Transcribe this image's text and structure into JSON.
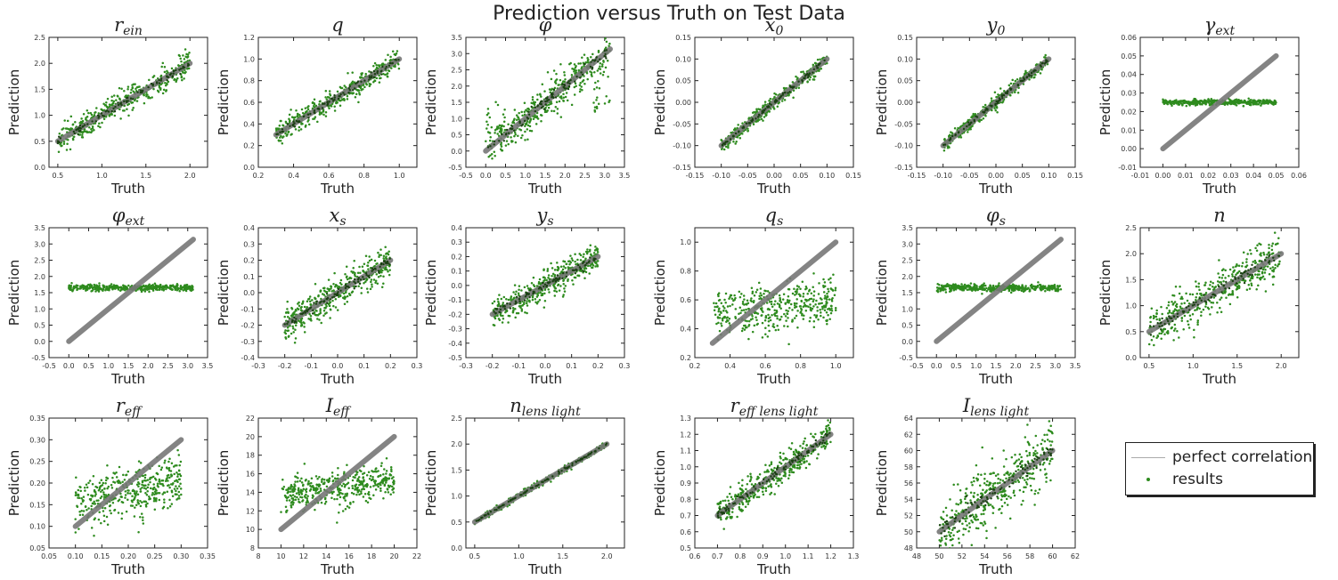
{
  "figure": {
    "title": "Prediction versus Truth on Test Data",
    "xlabel": "Truth",
    "ylabel": "Prediction"
  },
  "colors": {
    "results": "#2e8b1e",
    "results_dark": "#1a4012",
    "perfect": "#777777"
  },
  "legend": {
    "perfect_label": "perfect correlation",
    "results_label": "results"
  },
  "chart_data": [
    {
      "type": "scatter",
      "title": "r_ein",
      "title_html": "r<sub>ein</sub>",
      "xlim": [
        0.4,
        2.2
      ],
      "ylim": [
        0,
        2.5
      ],
      "xticks": [
        0.5,
        1.0,
        1.5,
        2.0
      ],
      "yticks": [
        0.0,
        0.5,
        1.0,
        1.5,
        2.0,
        2.5
      ],
      "xdec": 1,
      "ydec": 1,
      "truth_range": [
        0.5,
        2.0
      ],
      "behavior": "correlated",
      "noise": 0.12
    },
    {
      "type": "scatter",
      "title": "q",
      "title_html": "q",
      "xlim": [
        0.2,
        1.1
      ],
      "ylim": [
        0.0,
        1.2
      ],
      "xticks": [
        0.2,
        0.4,
        0.6,
        0.8,
        1.0
      ],
      "yticks": [
        0.0,
        0.2,
        0.4,
        0.6,
        0.8,
        1.0,
        1.2
      ],
      "xdec": 1,
      "ydec": 1,
      "truth_range": [
        0.3,
        1.0
      ],
      "behavior": "correlated",
      "noise": 0.05
    },
    {
      "type": "scatter",
      "title": "phi",
      "title_html": "φ",
      "xlim": [
        -0.5,
        3.5
      ],
      "ylim": [
        -0.5,
        3.5
      ],
      "xticks": [
        -0.5,
        0.0,
        0.5,
        1.0,
        1.5,
        2.0,
        2.5,
        3.0,
        3.5
      ],
      "yticks": [
        -0.5,
        0.0,
        0.5,
        1.0,
        1.5,
        2.0,
        2.5,
        3.0,
        3.5
      ],
      "xdec": 1,
      "ydec": 1,
      "truth_range": [
        0.0,
        3.14
      ],
      "behavior": "correlated",
      "noise": 0.3
    },
    {
      "type": "scatter",
      "title": "x_0",
      "title_html": "x<sub>0</sub>",
      "xlim": [
        -0.15,
        0.15
      ],
      "ylim": [
        -0.15,
        0.15
      ],
      "xticks": [
        -0.15,
        -0.1,
        -0.05,
        0.0,
        0.05,
        0.1,
        0.15
      ],
      "yticks": [
        -0.15,
        -0.1,
        -0.05,
        0.0,
        0.05,
        0.1,
        0.15
      ],
      "xdec": 2,
      "ydec": 2,
      "truth_range": [
        -0.1,
        0.1
      ],
      "behavior": "correlated",
      "noise": 0.008
    },
    {
      "type": "scatter",
      "title": "y_0",
      "title_html": "y<sub>0</sub>",
      "xlim": [
        -0.15,
        0.15
      ],
      "ylim": [
        -0.15,
        0.15
      ],
      "xticks": [
        -0.15,
        -0.1,
        -0.05,
        0.0,
        0.05,
        0.1,
        0.15
      ],
      "yticks": [
        -0.15,
        -0.1,
        -0.05,
        0.0,
        0.05,
        0.1,
        0.15
      ],
      "xdec": 2,
      "ydec": 2,
      "truth_range": [
        -0.1,
        0.1
      ],
      "behavior": "correlated",
      "noise": 0.008
    },
    {
      "type": "scatter",
      "title": "gamma_ext",
      "title_html": "γ<sub>ext</sub>",
      "xlim": [
        -0.01,
        0.06
      ],
      "ylim": [
        -0.01,
        0.06
      ],
      "xticks": [
        -0.01,
        0.0,
        0.01,
        0.02,
        0.03,
        0.04,
        0.05,
        0.06
      ],
      "yticks": [
        -0.01,
        0.0,
        0.01,
        0.02,
        0.03,
        0.04,
        0.05,
        0.06
      ],
      "xdec": 2,
      "ydec": 2,
      "truth_range": [
        0.0,
        0.05
      ],
      "behavior": "flat",
      "flat_value": 0.025,
      "noise": 0.0007
    },
    {
      "type": "scatter",
      "title": "phi_ext",
      "title_html": "φ<sub>ext</sub>",
      "xlim": [
        -0.5,
        3.5
      ],
      "ylim": [
        -0.5,
        3.5
      ],
      "xticks": [
        -0.5,
        0.0,
        0.5,
        1.0,
        1.5,
        2.0,
        2.5,
        3.0,
        3.5
      ],
      "yticks": [
        -0.5,
        0.0,
        0.5,
        1.0,
        1.5,
        2.0,
        2.5,
        3.0,
        3.5
      ],
      "xdec": 1,
      "ydec": 1,
      "truth_range": [
        0.0,
        3.14
      ],
      "behavior": "flat",
      "flat_value": 1.65,
      "noise": 0.05
    },
    {
      "type": "scatter",
      "title": "x_s",
      "title_html": "x<sub>s</sub>",
      "xlim": [
        -0.3,
        0.3
      ],
      "ylim": [
        -0.4,
        0.4
      ],
      "xticks": [
        -0.3,
        -0.2,
        -0.1,
        0.0,
        0.1,
        0.2,
        0.3
      ],
      "yticks": [
        -0.4,
        -0.3,
        -0.2,
        -0.1,
        0.0,
        0.1,
        0.2,
        0.3,
        0.4
      ],
      "xdec": 1,
      "ydec": 1,
      "truth_range": [
        -0.2,
        0.2
      ],
      "behavior": "correlated",
      "noise": 0.05
    },
    {
      "type": "scatter",
      "title": "y_s",
      "title_html": "y<sub>s</sub>",
      "xlim": [
        -0.3,
        0.3
      ],
      "ylim": [
        -0.5,
        0.4
      ],
      "xticks": [
        -0.3,
        -0.2,
        -0.1,
        0.0,
        0.1,
        0.2,
        0.3
      ],
      "yticks": [
        -0.5,
        -0.4,
        -0.3,
        -0.2,
        -0.1,
        0.0,
        0.1,
        0.2,
        0.3,
        0.4
      ],
      "xdec": 1,
      "ydec": 1,
      "truth_range": [
        -0.2,
        0.2
      ],
      "behavior": "correlated",
      "noise": 0.05
    },
    {
      "type": "scatter",
      "title": "q_s",
      "title_html": "q<sub>s</sub>",
      "xlim": [
        0.2,
        1.1
      ],
      "ylim": [
        0.2,
        1.1
      ],
      "xticks": [
        0.2,
        0.4,
        0.6,
        0.8,
        1.0
      ],
      "yticks": [
        0.2,
        0.4,
        0.6,
        0.8,
        1.0
      ],
      "xdec": 1,
      "ydec": 1,
      "truth_range": [
        0.3,
        1.0
      ],
      "behavior": "weak",
      "flat_value": 0.55,
      "slope": 0.15,
      "noise": 0.08
    },
    {
      "type": "scatter",
      "title": "phi_s",
      "title_html": "φ<sub>s</sub>",
      "xlim": [
        -0.5,
        3.5
      ],
      "ylim": [
        -0.5,
        3.5
      ],
      "xticks": [
        -0.5,
        0.0,
        0.5,
        1.0,
        1.5,
        2.0,
        2.5,
        3.0,
        3.5
      ],
      "yticks": [
        -0.5,
        0.0,
        0.5,
        1.0,
        1.5,
        2.0,
        2.5,
        3.0,
        3.5
      ],
      "xdec": 1,
      "ydec": 1,
      "truth_range": [
        0.0,
        3.14
      ],
      "behavior": "flat",
      "flat_value": 1.65,
      "noise": 0.05
    },
    {
      "type": "scatter",
      "title": "n",
      "title_html": "n",
      "xlim": [
        0.4,
        2.2
      ],
      "ylim": [
        0.0,
        2.5
      ],
      "xticks": [
        0.5,
        1.0,
        1.5,
        2.0
      ],
      "yticks": [
        0.0,
        0.5,
        1.0,
        1.5,
        2.0,
        2.5
      ],
      "xdec": 1,
      "ydec": 1,
      "truth_range": [
        0.5,
        2.0
      ],
      "behavior": "correlated",
      "noise": 0.2
    },
    {
      "type": "scatter",
      "title": "r_eff",
      "title_html": "r<sub>eff</sub>",
      "xlim": [
        0.05,
        0.35
      ],
      "ylim": [
        0.05,
        0.35
      ],
      "xticks": [
        0.05,
        0.1,
        0.15,
        0.2,
        0.25,
        0.3,
        0.35
      ],
      "yticks": [
        0.05,
        0.1,
        0.15,
        0.2,
        0.25,
        0.3,
        0.35
      ],
      "xdec": 2,
      "ydec": 2,
      "truth_range": [
        0.1,
        0.3
      ],
      "behavior": "weak",
      "flat_value": 0.18,
      "slope": 0.3,
      "noise": 0.03
    },
    {
      "type": "scatter",
      "title": "I_eff",
      "title_html": "I<sub>eff</sub>",
      "xlim": [
        8,
        22
      ],
      "ylim": [
        8,
        22
      ],
      "xticks": [
        8,
        10,
        12,
        14,
        16,
        18,
        20,
        22
      ],
      "yticks": [
        8,
        10,
        12,
        14,
        16,
        18,
        20,
        22
      ],
      "xdec": 0,
      "ydec": 0,
      "truth_range": [
        10,
        20
      ],
      "behavior": "weak",
      "flat_value": 14.5,
      "slope": 0.15,
      "noise": 1.0
    },
    {
      "type": "scatter",
      "title": "n_lens_light",
      "title_html": "n<sub>lens light</sub>",
      "xlim": [
        0.4,
        2.2
      ],
      "ylim": [
        0.0,
        2.5
      ],
      "xticks": [
        0.5,
        1.0,
        1.5,
        2.0
      ],
      "yticks": [
        0.0,
        0.5,
        1.0,
        1.5,
        2.0,
        2.5
      ],
      "xdec": 1,
      "ydec": 1,
      "truth_range": [
        0.5,
        2.0
      ],
      "behavior": "correlated",
      "noise": 0.03
    },
    {
      "type": "scatter",
      "title": "r_eff_lens_light",
      "title_html": "r<sub>eff lens light</sub>",
      "xlim": [
        0.6,
        1.3
      ],
      "ylim": [
        0.5,
        1.3
      ],
      "xticks": [
        0.6,
        0.7,
        0.8,
        0.9,
        1.0,
        1.1,
        1.2,
        1.3
      ],
      "yticks": [
        0.5,
        0.6,
        0.7,
        0.8,
        0.9,
        1.0,
        1.1,
        1.2,
        1.3
      ],
      "xdec": 1,
      "ydec": 1,
      "truth_range": [
        0.7,
        1.2
      ],
      "behavior": "correlated",
      "noise": 0.045
    },
    {
      "type": "scatter",
      "title": "I_lens_light",
      "title_html": "I<sub>lens light</sub>",
      "xlim": [
        48,
        62
      ],
      "ylim": [
        48,
        64
      ],
      "xticks": [
        48,
        50,
        52,
        54,
        56,
        58,
        60,
        62
      ],
      "yticks": [
        48,
        50,
        52,
        54,
        56,
        58,
        60,
        62,
        64
      ],
      "xdec": 0,
      "ydec": 0,
      "truth_range": [
        50,
        60
      ],
      "behavior": "correlated",
      "noise": 1.8
    }
  ]
}
